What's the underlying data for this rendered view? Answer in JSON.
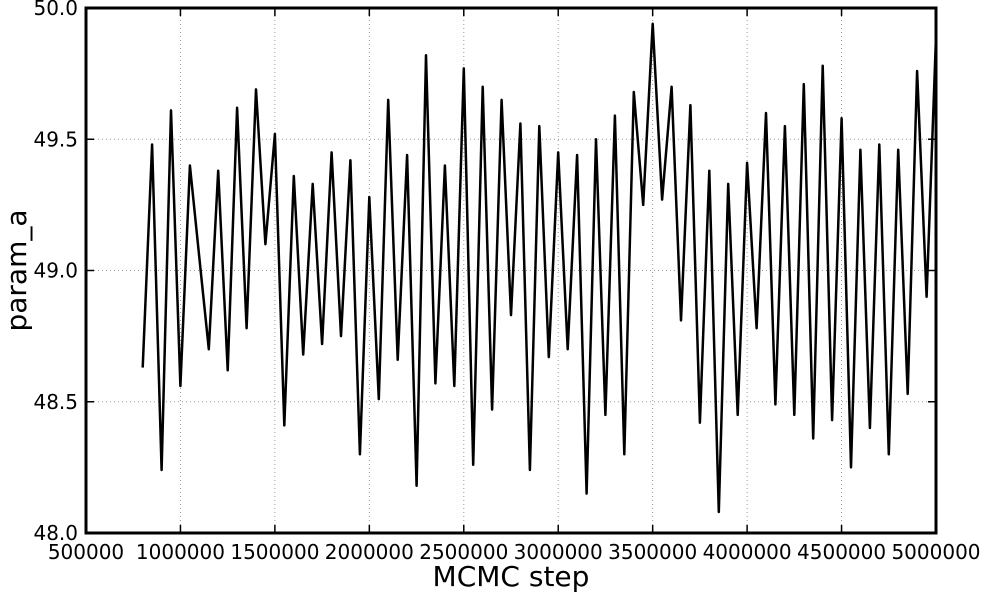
{
  "chart_data": {
    "type": "line",
    "title": "",
    "xlabel": "MCMC step",
    "ylabel": "param_a",
    "xlim": [
      500000,
      5000000
    ],
    "ylim": [
      48.0,
      50.0
    ],
    "grid": true,
    "x_ticks": [
      500000,
      1000000,
      1500000,
      2000000,
      2500000,
      3000000,
      3500000,
      4000000,
      4500000,
      5000000
    ],
    "x_tick_labels": [
      "500000",
      "1000000",
      "1500000",
      "2000000",
      "2500000",
      "3000000",
      "3500000",
      "4000000",
      "4500000",
      "5000000"
    ],
    "y_ticks": [
      48.0,
      48.5,
      49.0,
      49.5,
      50.0
    ],
    "y_tick_labels": [
      "48.0",
      "48.5",
      "49.0",
      "49.5",
      "50.0"
    ],
    "series": [
      {
        "color": "#000000",
        "x": [
          800000,
          850000,
          900000,
          950000,
          1000000,
          1050000,
          1100000,
          1150000,
          1200000,
          1250000,
          1300000,
          1350000,
          1400000,
          1450000,
          1500000,
          1550000,
          1600000,
          1650000,
          1700000,
          1750000,
          1800000,
          1850000,
          1900000,
          1950000,
          2000000,
          2050000,
          2100000,
          2150000,
          2200000,
          2250000,
          2300000,
          2350000,
          2400000,
          2450000,
          2500000,
          2550000,
          2600000,
          2650000,
          2700000,
          2750000,
          2800000,
          2850000,
          2900000,
          2950000,
          3000000,
          3050000,
          3100000,
          3150000,
          3200000,
          3250000,
          3300000,
          3350000,
          3400000,
          3450000,
          3500000,
          3550000,
          3600000,
          3650000,
          3700000,
          3750000,
          3800000,
          3850000,
          3900000,
          3950000,
          4000000,
          4050000,
          4100000,
          4150000,
          4200000,
          4250000,
          4300000,
          4350000,
          4400000,
          4450000,
          4500000,
          4550000,
          4600000,
          4650000,
          4700000,
          4750000,
          4800000,
          4850000,
          4900000,
          4950000,
          5000000
        ],
        "y": [
          48.63,
          49.48,
          48.24,
          49.61,
          48.56,
          49.4,
          49.05,
          48.7,
          49.38,
          48.62,
          49.62,
          48.78,
          49.69,
          49.1,
          49.52,
          48.41,
          49.36,
          48.68,
          49.33,
          48.72,
          49.45,
          48.75,
          49.42,
          48.3,
          49.28,
          48.51,
          49.65,
          48.66,
          49.44,
          48.18,
          49.82,
          48.57,
          49.4,
          48.56,
          49.77,
          48.26,
          49.7,
          48.47,
          49.65,
          48.83,
          49.56,
          48.24,
          49.55,
          48.67,
          49.45,
          48.7,
          49.44,
          48.15,
          49.5,
          48.45,
          49.59,
          48.3,
          49.68,
          49.25,
          49.94,
          49.27,
          49.7,
          48.81,
          49.63,
          48.42,
          49.38,
          48.08,
          49.33,
          48.45,
          49.41,
          48.78,
          49.6,
          48.49,
          49.55,
          48.45,
          49.71,
          48.36,
          49.78,
          48.43,
          49.58,
          48.25,
          49.46,
          48.4,
          49.48,
          48.3,
          49.46,
          48.53,
          49.76,
          48.9,
          49.89
        ],
        "note_removed": true
      }
    ]
  }
}
